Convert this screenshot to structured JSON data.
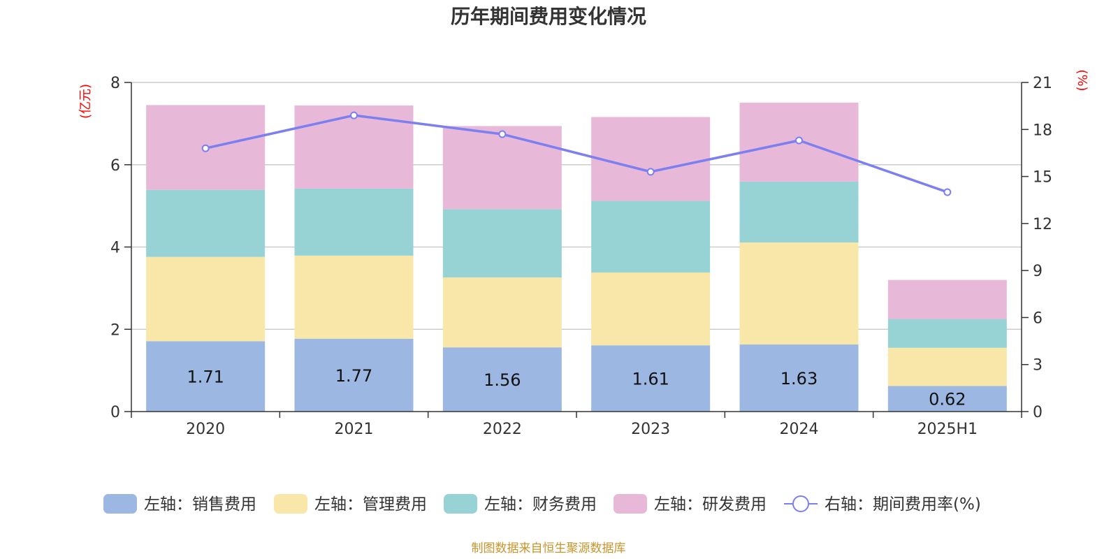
{
  "chart_data": {
    "type": "bar",
    "title": "历年期间费用变化情况",
    "categories": [
      "2020",
      "2021",
      "2022",
      "2023",
      "2024",
      "2025H1"
    ],
    "left_axis": {
      "unit": "(亿元)",
      "ylim": [
        0,
        8
      ],
      "ticks": [
        "0",
        "2",
        "4",
        "6",
        "8"
      ]
    },
    "right_axis": {
      "unit": "(%)",
      "ylim": [
        0,
        21
      ],
      "ticks": [
        "0",
        "3",
        "6",
        "9",
        "12",
        "15",
        "18",
        "21"
      ]
    },
    "series": [
      {
        "name": "左轴：销售费用",
        "type": "bar",
        "color": "#9cb8e2",
        "values": [
          1.71,
          1.77,
          1.56,
          1.61,
          1.63,
          0.62
        ],
        "labels": [
          "1.71",
          "1.77",
          "1.56",
          "1.61",
          "1.63",
          "0.62"
        ]
      },
      {
        "name": "左轴：管理费用",
        "type": "bar",
        "color": "#f8e7a8",
        "values": [
          2.05,
          2.02,
          1.7,
          1.77,
          2.48,
          0.93
        ]
      },
      {
        "name": "左轴：财务费用",
        "type": "bar",
        "color": "#97d3d4",
        "values": [
          1.63,
          1.63,
          1.66,
          1.74,
          1.48,
          0.7
        ]
      },
      {
        "name": "左轴：研发费用",
        "type": "bar",
        "color": "#e8b8d8",
        "values": [
          2.06,
          2.02,
          2.02,
          2.04,
          1.92,
          0.95
        ]
      },
      {
        "name": "右轴：期间费用率(%)",
        "type": "line",
        "axis": "right",
        "color": "#7b7ff0",
        "values": [
          16.8,
          18.9,
          17.7,
          15.3,
          17.3,
          14.0
        ]
      }
    ],
    "grid": true,
    "legend_position": "bottom",
    "source": "制图数据来自恒生聚源数据库"
  }
}
